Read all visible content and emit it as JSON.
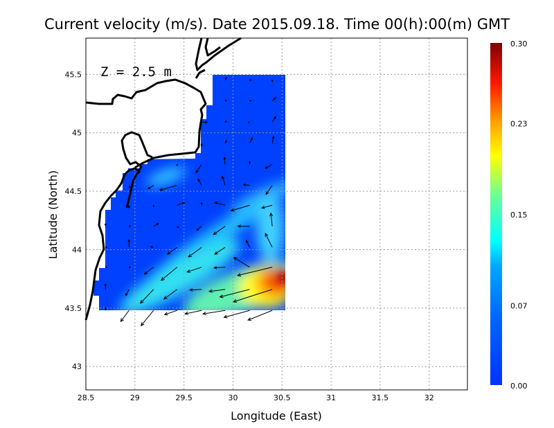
{
  "chart_data": {
    "type": "heatmap",
    "title": "Current velocity (m/s). Date 2015.09.18. Time 00(h):00(m) GMT",
    "annotation": "Z = 2.5 m",
    "xlabel": "Longitude (East)",
    "ylabel": "Latitude (North)",
    "xlim": [
      28.5,
      32.39
    ],
    "ylim": [
      42.8,
      45.81
    ],
    "x_ticks": [
      "28.5",
      "29",
      "29.5",
      "30",
      "30.5",
      "31",
      "31.5",
      "32"
    ],
    "y_ticks": [
      "43",
      "43.5",
      "44",
      "44.5",
      "45",
      "45.5"
    ],
    "grid": true,
    "colorbar": {
      "range": [
        0,
        0.3
      ],
      "ticks": [
        "0.00",
        "0.07",
        "0.15",
        "0.23",
        "0.30"
      ],
      "colormap": "jet",
      "colors": [
        "#0033ff",
        "#0080ff",
        "#00ffff",
        "#80ff80",
        "#ffff00",
        "#ff8000",
        "#ff0000",
        "#800000"
      ],
      "placement": "right"
    },
    "max_speed_region": {
      "lon": 30.45,
      "lat": 43.75,
      "value": 0.3
    },
    "vectors_columns": [
      "lon",
      "lat",
      "u",
      "v"
    ],
    "vectors": [
      [
        29.92,
        45.45,
        0.01,
        0.02
      ],
      [
        30.17,
        45.45,
        0.01,
        0.0
      ],
      [
        30.4,
        45.45,
        0.0,
        -0.01
      ],
      [
        29.92,
        45.27,
        0.01,
        0.01
      ],
      [
        30.17,
        45.27,
        0.01,
        0.005
      ],
      [
        30.4,
        45.27,
        0.025,
        0.025
      ],
      [
        29.68,
        45.09,
        0.04,
        0.0
      ],
      [
        29.92,
        45.09,
        0.01,
        0.01
      ],
      [
        30.17,
        45.09,
        -0.01,
        0.0
      ],
      [
        30.4,
        45.09,
        0.025,
        0.04
      ],
      [
        29.68,
        44.91,
        0.0,
        -0.02
      ],
      [
        29.92,
        44.91,
        0.01,
        0.02
      ],
      [
        30.17,
        44.91,
        0.02,
        0.04
      ],
      [
        30.4,
        44.91,
        0.01,
        0.05
      ],
      [
        29.43,
        44.73,
        0.0,
        -0.01
      ],
      [
        29.68,
        44.73,
        -0.04,
        -0.06
      ],
      [
        29.92,
        44.73,
        -0.005,
        0.05
      ],
      [
        30.17,
        44.73,
        0.0,
        0.02
      ],
      [
        30.4,
        44.73,
        -0.05,
        -0.03
      ],
      [
        28.94,
        44.55,
        0.01,
        -0.02
      ],
      [
        29.19,
        44.55,
        -0.04,
        -0.025
      ],
      [
        29.43,
        44.55,
        -0.125,
        -0.035
      ],
      [
        29.68,
        44.55,
        -0.025,
        0.045
      ],
      [
        29.92,
        44.55,
        -0.02,
        0.065
      ],
      [
        30.17,
        44.55,
        -0.045,
        0.005
      ],
      [
        30.4,
        44.55,
        -0.045,
        -0.065
      ],
      [
        28.94,
        44.38,
        0.0,
        -0.02
      ],
      [
        29.19,
        44.38,
        0.0,
        -0.01
      ],
      [
        29.43,
        44.38,
        0.055,
        0.02
      ],
      [
        29.68,
        44.38,
        0.0,
        0.02
      ],
      [
        29.92,
        44.38,
        -0.075,
        0.02
      ],
      [
        30.17,
        44.38,
        -0.135,
        -0.04
      ],
      [
        30.4,
        44.38,
        -0.075,
        -0.02
      ],
      [
        28.7,
        44.2,
        0.0,
        0.02
      ],
      [
        28.94,
        44.2,
        0.01,
        0.0
      ],
      [
        29.19,
        44.2,
        0.035,
        0.02
      ],
      [
        29.43,
        44.2,
        0.01,
        -0.01
      ],
      [
        29.68,
        44.2,
        -0.035,
        -0.03
      ],
      [
        29.92,
        44.2,
        -0.085,
        -0.06
      ],
      [
        30.17,
        44.2,
        -0.085,
        0.0
      ],
      [
        30.4,
        44.2,
        -0.01,
        0.095
      ],
      [
        28.7,
        44.02,
        0.01,
        0.0
      ],
      [
        28.94,
        44.02,
        0.0,
        0.055
      ],
      [
        29.19,
        44.02,
        -0.02,
        0.005
      ],
      [
        29.43,
        44.02,
        -0.07,
        -0.05
      ],
      [
        29.68,
        44.02,
        -0.095,
        -0.07
      ],
      [
        29.92,
        44.02,
        -0.075,
        -0.05
      ],
      [
        30.17,
        44.02,
        -0.025,
        0.05
      ],
      [
        30.4,
        44.02,
        -0.05,
        0.1
      ],
      [
        28.7,
        43.85,
        0.01,
        0.0
      ],
      [
        28.94,
        43.85,
        0.01,
        0.0
      ],
      [
        29.19,
        43.85,
        -0.065,
        -0.05
      ],
      [
        29.43,
        43.85,
        -0.115,
        -0.095
      ],
      [
        29.68,
        43.85,
        -0.105,
        -0.035
      ],
      [
        29.92,
        43.85,
        -0.08,
        -0.005
      ],
      [
        30.17,
        43.85,
        -0.115,
        0.07
      ],
      [
        30.4,
        43.85,
        -0.25,
        -0.06
      ],
      [
        28.7,
        43.66,
        0.0,
        0.04
      ],
      [
        28.94,
        43.66,
        -0.025,
        -0.045
      ],
      [
        29.19,
        43.66,
        -0.095,
        -0.1
      ],
      [
        29.43,
        43.66,
        -0.095,
        -0.07
      ],
      [
        29.68,
        43.66,
        -0.085,
        -0.005
      ],
      [
        29.92,
        43.66,
        -0.115,
        -0.015
      ],
      [
        30.17,
        43.66,
        -0.215,
        -0.055
      ],
      [
        30.4,
        43.66,
        -0.28,
        -0.09
      ],
      [
        28.7,
        43.48,
        0.0,
        0.02
      ],
      [
        28.94,
        43.48,
        -0.06,
        -0.08
      ],
      [
        29.19,
        43.48,
        -0.09,
        -0.11
      ],
      [
        29.43,
        43.48,
        -0.09,
        -0.03
      ],
      [
        29.68,
        43.48,
        -0.12,
        -0.025
      ],
      [
        29.92,
        43.48,
        -0.16,
        -0.025
      ],
      [
        30.17,
        43.48,
        -0.185,
        -0.05
      ],
      [
        30.4,
        43.48,
        -0.175,
        -0.07
      ]
    ]
  }
}
